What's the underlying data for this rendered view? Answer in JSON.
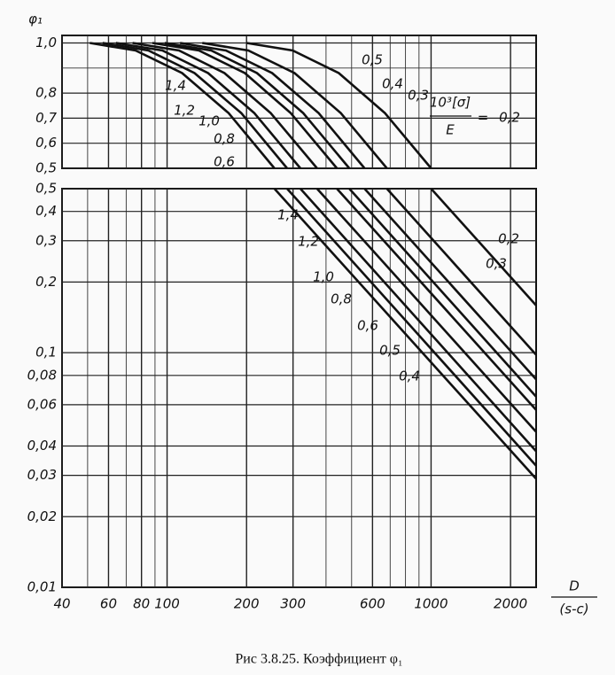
{
  "chart_data": [
    {
      "type": "line",
      "ylabel": "φ₁",
      "yscale": "linear",
      "ylim": [
        0.5,
        1.03
      ],
      "yticks": [
        {
          "value": 0.5,
          "label": "0,5"
        },
        {
          "value": 0.6,
          "label": "0,6"
        },
        {
          "value": 0.7,
          "label": "0,7"
        },
        {
          "value": 0.8,
          "label": "0,8"
        },
        {
          "value": 1.0,
          "label": "1,0"
        }
      ],
      "yminor": [
        0.9
      ],
      "legend_title": {
        "numerator": "10³[σ]",
        "denominator": "E",
        "relation": "="
      },
      "series": [
        {
          "name": "1,4",
          "color": "#111",
          "x": [
            51,
            76,
            114,
            171,
            255
          ],
          "values": [
            1,
            0.97,
            0.88,
            0.72,
            0.5
          ]
        },
        {
          "name": "1,2",
          "color": "#111",
          "x": [
            57,
            85,
            127,
            191,
            285
          ],
          "values": [
            1,
            0.97,
            0.88,
            0.72,
            0.5
          ]
        },
        {
          "name": "1,0",
          "color": "#111",
          "x": [
            64,
            96,
            143,
            214,
            320
          ],
          "values": [
            1,
            0.97,
            0.88,
            0.72,
            0.5
          ]
        },
        {
          "name": "0,8",
          "color": "#111",
          "x": [
            74,
            111,
            165,
            247,
            370
          ],
          "values": [
            1,
            0.97,
            0.88,
            0.72,
            0.5
          ]
        },
        {
          "name": "0,6",
          "color": "#111",
          "x": [
            88,
            132,
            197,
            294,
            440
          ],
          "values": [
            1,
            0.97,
            0.88,
            0.72,
            0.5
          ]
        },
        {
          "name": "0,5",
          "color": "#111",
          "x": [
            98,
            147,
            219,
            328,
            490
          ],
          "values": [
            1,
            0.97,
            0.88,
            0.72,
            0.5
          ]
        },
        {
          "name": "0,4",
          "color": "#111",
          "x": [
            112,
            167,
            250,
            375,
            560
          ],
          "values": [
            1,
            0.97,
            0.88,
            0.72,
            0.5
          ]
        },
        {
          "name": "0,3",
          "color": "#111",
          "x": [
            136,
            203,
            304,
            455,
            680
          ],
          "values": [
            1,
            0.97,
            0.88,
            0.72,
            0.5
          ]
        },
        {
          "name": "0,2",
          "color": "#111",
          "x": [
            200,
            299,
            447,
            669,
            1000
          ],
          "values": [
            1,
            0.97,
            0.88,
            0.72,
            0.5
          ]
        }
      ]
    },
    {
      "type": "line",
      "xscale": "log",
      "yscale": "log",
      "xlim": [
        40,
        2500
      ],
      "ylim": [
        0.01,
        0.5
      ],
      "xticks": [
        40,
        60,
        80,
        100,
        200,
        300,
        600,
        1000,
        2000
      ],
      "xminor": [
        50,
        70,
        90,
        400,
        500,
        700,
        800,
        900
      ],
      "xlabel": {
        "numerator": "D",
        "denominator": "(s-c)"
      },
      "yticks": [
        {
          "value": 0.01,
          "label": "0,01"
        },
        {
          "value": 0.02,
          "label": "0,02"
        },
        {
          "value": 0.03,
          "label": "0,03"
        },
        {
          "value": 0.04,
          "label": "0,04"
        },
        {
          "value": 0.06,
          "label": "0,06"
        },
        {
          "value": 0.08,
          "label": "0,08"
        },
        {
          "value": 0.1,
          "label": "0,1"
        },
        {
          "value": 0.2,
          "label": "0,2"
        },
        {
          "value": 0.3,
          "label": "0,3"
        },
        {
          "value": 0.4,
          "label": "0,4"
        },
        {
          "value": 0.5,
          "label": "0,5"
        }
      ],
      "series": [
        {
          "name": "1,4",
          "color": "#111",
          "x": [
            255,
            2500
          ],
          "values": [
            0.5,
            0.029
          ]
        },
        {
          "name": "1,2",
          "color": "#111",
          "x": [
            285,
            2500
          ],
          "values": [
            0.5,
            0.033
          ]
        },
        {
          "name": "1,0",
          "color": "#111",
          "x": [
            320,
            2500
          ],
          "values": [
            0.5,
            0.038
          ]
        },
        {
          "name": "0,8",
          "color": "#111",
          "x": [
            370,
            2500
          ],
          "values": [
            0.5,
            0.046
          ]
        },
        {
          "name": "0,6",
          "color": "#111",
          "x": [
            440,
            2500
          ],
          "values": [
            0.5,
            0.057
          ]
        },
        {
          "name": "0,5",
          "color": "#111",
          "x": [
            490,
            2500
          ],
          "values": [
            0.5,
            0.065
          ]
        },
        {
          "name": "0,4",
          "color": "#111",
          "x": [
            560,
            2500
          ],
          "values": [
            0.5,
            0.077
          ]
        },
        {
          "name": "0,3",
          "color": "#111",
          "x": [
            680,
            2500
          ],
          "values": [
            0.5,
            0.098
          ]
        },
        {
          "name": "0,2",
          "color": "#111",
          "x": [
            1000,
            2500
          ],
          "values": [
            0.5,
            0.159
          ]
        }
      ]
    }
  ],
  "caption": "Рис 3.8.25. Коэффициент φ₁"
}
